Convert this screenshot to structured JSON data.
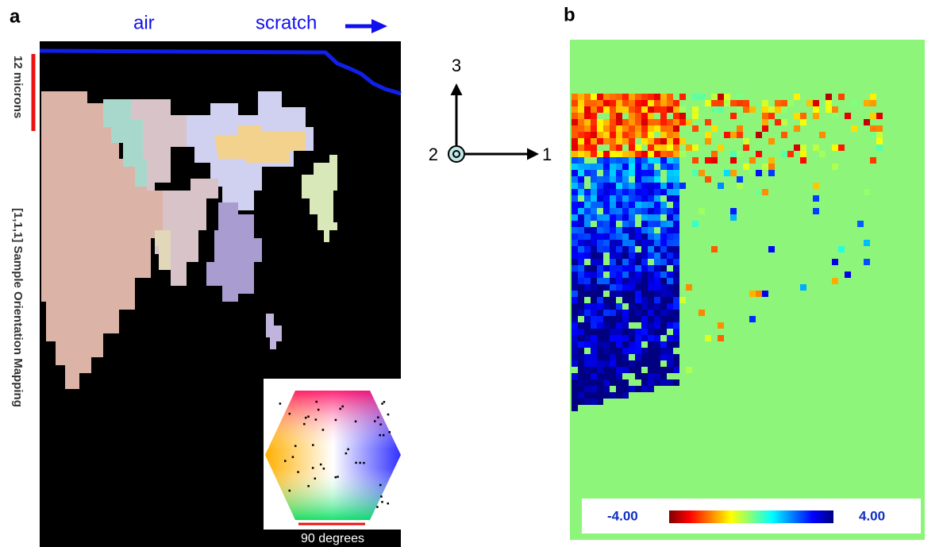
{
  "panel_a": {
    "label": "a",
    "air": "air",
    "scratch": "scratch",
    "scale_bar": "12 microns",
    "side_title": "[1,1,1] Sample Orientation Mapping",
    "inset_caption": "90 degrees"
  },
  "axes": {
    "axis_3": "3",
    "axis_2": "2",
    "axis_1": "1"
  },
  "panel_b": {
    "label": "b",
    "colorbar_min": "-4.00",
    "colorbar_max": "4.00"
  }
}
